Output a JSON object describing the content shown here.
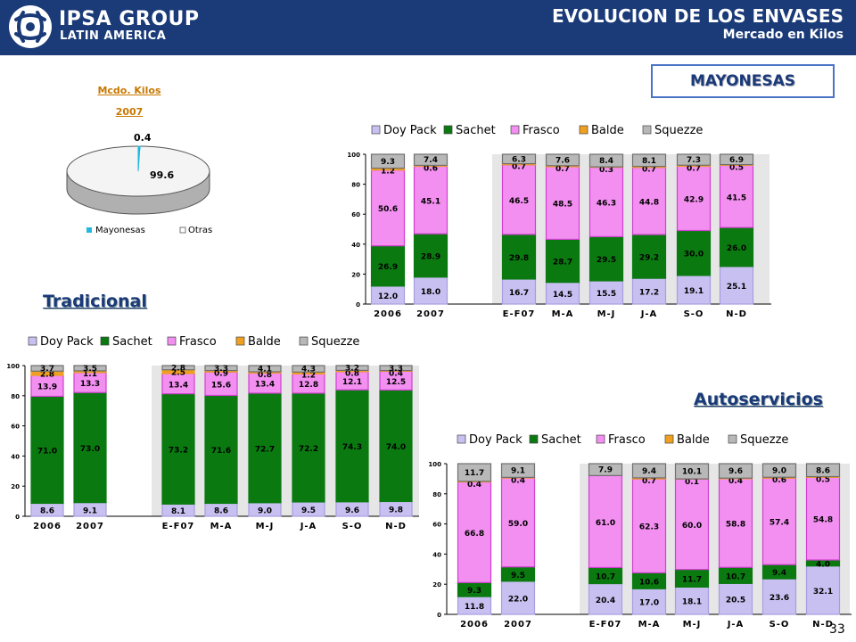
{
  "header": {
    "logo_line1": "IPSA GROUP",
    "logo_line2": "LATIN AMERICA",
    "title": "EVOLUCION DE LOS ENVASES",
    "subtitle": "Mercado en Kilos"
  },
  "category": "MAYONESAS",
  "pie": {
    "title1": "Mcdo. Kilos",
    "title2": "2007",
    "labels": {
      "mayonesas": "0.4",
      "otras": "99.6"
    },
    "legend": [
      "Mayonesas",
      "Otras"
    ]
  },
  "sections": {
    "tradicional": "Tradicional",
    "autoservicios": "Autoservicios"
  },
  "page_number": "33",
  "colors": {
    "doy_pack": "#c8c0f0",
    "sachet": "#0a7a10",
    "frasco": "#f28ff0",
    "balde": "#f0a020",
    "squezze": "#b8b8b8",
    "header_bg": "#1a3a78",
    "pie_mayonesas": "#20b8e0",
    "pie_otras": "#ffffff"
  },
  "chart_data": [
    {
      "type": "bar",
      "stacked": true,
      "panel": "Total",
      "categories": [
        "2006",
        "2007",
        "E-F07",
        "M-A",
        "M-J",
        "J-A",
        "S-O",
        "N-D"
      ],
      "ylim": [
        0,
        100
      ],
      "yticks": [
        "0",
        "20",
        "40",
        "60",
        "80",
        "100"
      ],
      "legend": [
        "Doy Pack",
        "Sachet",
        "Frasco",
        "Balde",
        "Squezze"
      ],
      "series": [
        {
          "name": "Doy Pack",
          "values": [
            12.0,
            18.0,
            16.7,
            14.5,
            15.5,
            17.2,
            19.1,
            25.1
          ],
          "labels": [
            "12.0",
            "18.0",
            "16.7",
            "14.5",
            "15.5",
            "17.2",
            "19.1",
            "25.1"
          ]
        },
        {
          "name": "Sachet",
          "values": [
            26.9,
            28.9,
            29.8,
            28.7,
            29.5,
            29.2,
            30.0,
            26.0
          ],
          "labels": [
            "26.9",
            "28.9",
            "29.8",
            "28.7",
            "29.5",
            "29.2",
            "30.0",
            "26.0"
          ]
        },
        {
          "name": "Frasco",
          "values": [
            50.6,
            45.1,
            46.5,
            48.5,
            46.3,
            44.8,
            42.9,
            41.5
          ],
          "labels": [
            "50.6",
            "45.1",
            "46.5",
            "48.5",
            "46.3",
            "44.8",
            "42.9",
            "41.5"
          ]
        },
        {
          "name": "Balde",
          "values": [
            1.2,
            0.6,
            0.7,
            0.7,
            0.3,
            0.7,
            0.7,
            0.5
          ],
          "labels": [
            "1.2",
            "0.6",
            "0.7",
            "0.7",
            "0.3",
            "0.7",
            "0.7",
            "0.5"
          ]
        },
        {
          "name": "Squezze",
          "values": [
            9.3,
            7.4,
            6.3,
            7.6,
            8.4,
            8.1,
            7.3,
            6.9
          ],
          "labels": [
            "9.3",
            "7.4",
            "6.3",
            "7.6",
            "8.4",
            "8.1",
            "7.3",
            "6.9"
          ]
        }
      ]
    },
    {
      "type": "bar",
      "stacked": true,
      "panel": "Tradicional",
      "categories": [
        "2006",
        "2007",
        "E-F07",
        "M-A",
        "M-J",
        "J-A",
        "S-O",
        "N-D"
      ],
      "ylim": [
        0,
        100
      ],
      "yticks": [
        "0",
        "20",
        "40",
        "60",
        "80",
        "100"
      ],
      "legend": [
        "Doy Pack",
        "Sachet",
        "Frasco",
        "Balde",
        "Squezze"
      ],
      "series": [
        {
          "name": "Doy Pack",
          "values": [
            8.6,
            9.1,
            8.1,
            8.6,
            9.0,
            9.5,
            9.6,
            9.8
          ],
          "labels": [
            "8.6",
            "9.1",
            "8.1",
            "8.6",
            "9.0",
            "9.5",
            "9.6",
            "9.8"
          ]
        },
        {
          "name": "Sachet",
          "values": [
            71.0,
            73.0,
            73.2,
            71.6,
            72.7,
            72.2,
            74.3,
            74.0
          ],
          "labels": [
            "71.0",
            "73.0",
            "73.2",
            "71.6",
            "72.7",
            "72.2",
            "74.3",
            "74.0"
          ]
        },
        {
          "name": "Frasco",
          "values": [
            13.9,
            13.3,
            13.4,
            15.6,
            13.4,
            12.8,
            12.1,
            12.5
          ],
          "labels": [
            "13.9",
            "13.3",
            "13.4",
            "15.6",
            "13.4",
            "12.8",
            "12.1",
            "12.5"
          ]
        },
        {
          "name": "Balde",
          "values": [
            2.8,
            1.1,
            2.5,
            0.9,
            0.8,
            1.2,
            0.8,
            0.4
          ],
          "labels": [
            "2.8",
            "1.1",
            "2.5",
            "0.9",
            "0.8",
            "1.2",
            "0.8",
            "0.4"
          ]
        },
        {
          "name": "Squezze",
          "values": [
            3.7,
            3.5,
            2.8,
            3.3,
            4.1,
            4.3,
            3.2,
            3.3
          ],
          "labels": [
            "3.7",
            "3.5",
            "2.8",
            "3.3",
            "4.1",
            "4.3",
            "3.2",
            "3.3"
          ]
        }
      ]
    },
    {
      "type": "bar",
      "stacked": true,
      "panel": "Autoservicios",
      "categories": [
        "2006",
        "2007",
        "E-F07",
        "M-A",
        "M-J",
        "J-A",
        "S-O",
        "N-D"
      ],
      "ylim": [
        0,
        100
      ],
      "yticks": [
        "0",
        "20",
        "40",
        "60",
        "80",
        "100"
      ],
      "legend": [
        "Doy Pack",
        "Sachet",
        "Frasco",
        "Balde",
        "Squezze"
      ],
      "series": [
        {
          "name": "Doy Pack",
          "values": [
            11.8,
            22.0,
            20.4,
            17.0,
            18.1,
            20.5,
            23.6,
            32.1
          ],
          "labels": [
            "11.8",
            "22.0",
            "20.4",
            "17.0",
            "18.1",
            "20.5",
            "23.6",
            "32.1"
          ]
        },
        {
          "name": "Sachet",
          "values": [
            9.3,
            9.5,
            10.7,
            10.6,
            11.7,
            10.7,
            9.4,
            4.0
          ],
          "labels": [
            "9.3",
            "9.5",
            "10.7",
            "10.6",
            "11.7",
            "10.7",
            "9.4",
            "4.0"
          ]
        },
        {
          "name": "Frasco",
          "values": [
            66.8,
            59.0,
            61.0,
            62.3,
            60.0,
            58.8,
            57.4,
            54.8
          ],
          "labels": [
            "66.8",
            "59.0",
            "61.0",
            "62.3",
            "60.0",
            "58.8",
            "57.4",
            "54.8"
          ]
        },
        {
          "name": "Balde",
          "values": [
            0.4,
            0.4,
            0.0,
            0.7,
            0.1,
            0.4,
            0.6,
            0.5
          ],
          "labels": [
            "0.4",
            "0.4",
            "",
            "0.7",
            "0.1",
            "0.4",
            "0.6",
            "0.5"
          ]
        },
        {
          "name": "Squezze",
          "values": [
            11.7,
            9.1,
            7.9,
            9.4,
            10.1,
            9.6,
            9.0,
            8.6
          ],
          "labels": [
            "11.7",
            "9.1",
            "7.9",
            "9.4",
            "10.1",
            "9.6",
            "9.0",
            "8.6"
          ]
        }
      ]
    }
  ]
}
